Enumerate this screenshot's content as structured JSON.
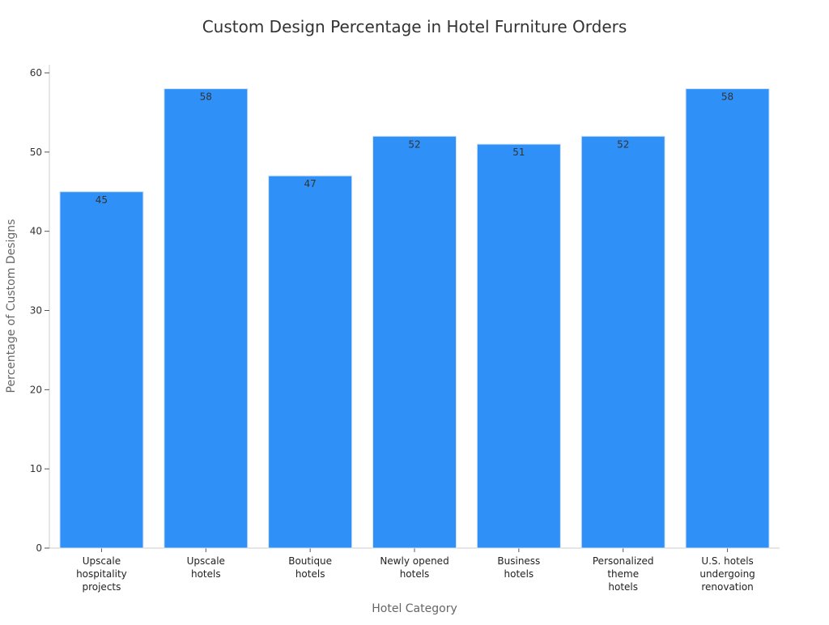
{
  "chart_data": {
    "type": "bar",
    "title": "Custom Design Percentage in Hotel Furniture Orders",
    "xlabel": "Hotel Category",
    "ylabel": "Percentage of Custom Designs",
    "categories": [
      "Upscale hospitality projects",
      "Upscale hotels",
      "Boutique hotels",
      "Newly opened hotels",
      "Business hotels",
      "Personalized theme hotels",
      "U.S. hotels undergoing renovation"
    ],
    "category_lines": [
      [
        "Upscale",
        "hospitality",
        "projects"
      ],
      [
        "Upscale",
        "hotels"
      ],
      [
        "Boutique",
        "hotels"
      ],
      [
        "Newly opened",
        "hotels"
      ],
      [
        "Business",
        "hotels"
      ],
      [
        "Personalized",
        "theme",
        "hotels"
      ],
      [
        "U.S. hotels",
        "undergoing",
        "renovation"
      ]
    ],
    "values": [
      45,
      58,
      47,
      52,
      51,
      52,
      58
    ],
    "ylim": [
      0,
      60
    ],
    "yticks": [
      0,
      10,
      20,
      30,
      40,
      50,
      60
    ],
    "grid": false,
    "legend": "none",
    "bar_color": "#2f90f7",
    "bar_edge_color": "#d7e3f4",
    "text_color": "#333333",
    "axis_label_color": "#666666"
  }
}
